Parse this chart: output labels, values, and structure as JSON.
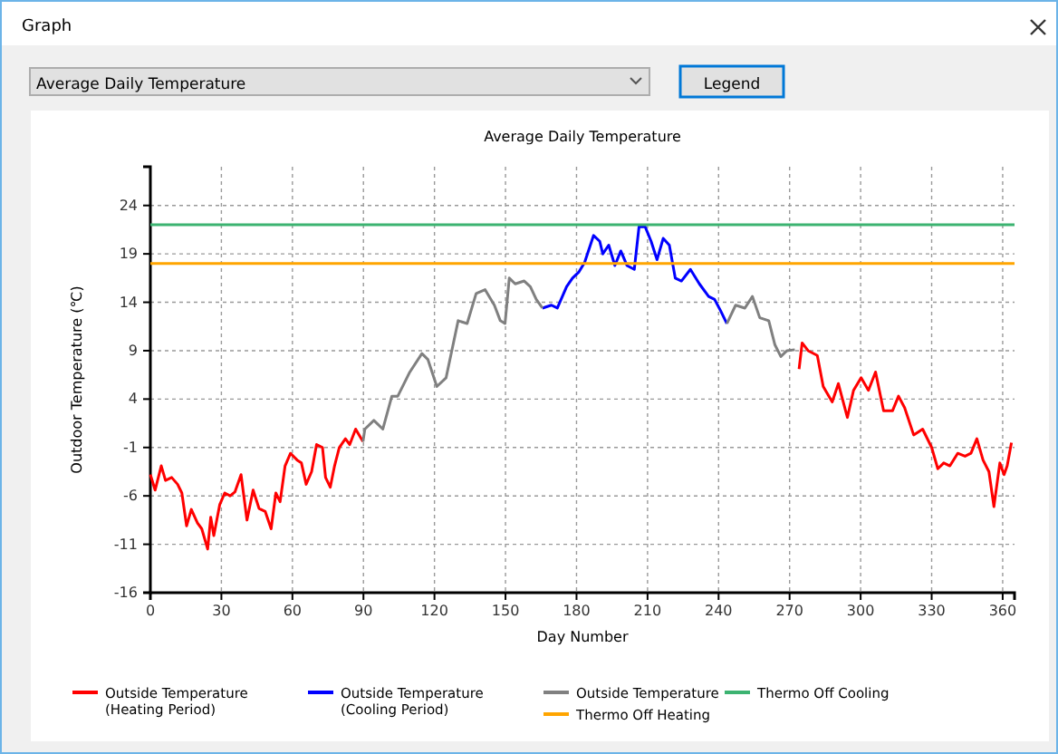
{
  "chart_data": {
    "type": "line",
    "title": "Average Daily Temperature",
    "xlabel": "Day Number",
    "ylabel": "Outdoor Temperature (℃)",
    "annotations": [
      "Graph",
      "Average Daily Temperature",
      "Legend"
    ],
    "xlim": [
      0,
      365
    ],
    "xticks": [
      0,
      30,
      60,
      90,
      120,
      150,
      180,
      210,
      240,
      270,
      300,
      330,
      360
    ],
    "ylim": [
      -16,
      28
    ],
    "yticks": [
      -16,
      -11,
      -6,
      -1,
      4,
      9,
      14,
      19,
      24
    ],
    "grid": true,
    "legend": "bottom",
    "marker": "none",
    "line_style": "solid",
    "series": [
      {
        "name": "Outside Temperature (Heating Period)",
        "color": "#ff0000",
        "x": [
          0,
          2,
          4.6,
          6.4,
          9,
          11.5,
          13.3,
          15.3,
          17.3,
          19.9,
          21.7,
          24.2,
          25.5,
          26.8,
          29.3,
          31.4,
          33.7,
          35.7,
          38.3,
          40.8,
          43.4,
          45.9,
          48.5,
          51,
          53,
          54.8,
          56.9,
          59.2,
          62,
          63.8,
          65.8,
          68.1,
          70.2,
          72.7,
          74,
          76,
          77.8,
          79.8,
          82.4,
          84.2,
          86.7,
          89.8
        ],
        "values": [
          -3.8,
          -5.4,
          -2.9,
          -4.4,
          -4.1,
          -4.8,
          -5.7,
          -9.1,
          -7.4,
          -8.8,
          -9.4,
          -11.5,
          -8.2,
          -10.1,
          -6.9,
          -5.7,
          -6,
          -5.6,
          -3.8,
          -8.5,
          -5.4,
          -7.3,
          -7.6,
          -9.4,
          -5.7,
          -6.6,
          -2.9,
          -1.6,
          -2.3,
          -2.6,
          -4.8,
          -3.5,
          -0.7,
          -1,
          -4.1,
          -5.1,
          -2.9,
          -1,
          -0.1,
          -0.7,
          0.9,
          -0.4
        ]
      },
      {
        "name": "Outside Temperature (Cooling Period)",
        "color": "#0000ff",
        "x": [
          165.6,
          169.4,
          171.9,
          175.8,
          178.3,
          180.9,
          183.4,
          187.2,
          189.8,
          191.1,
          193.6,
          196.2,
          198.7,
          201.3,
          204.4,
          206.4,
          209,
          211.5,
          214,
          216.6,
          219.2,
          221.7,
          224.3,
          228.1,
          231.9,
          235.8,
          238.3,
          240.9,
          243.5
        ],
        "values": [
          13.4,
          13.7,
          13.4,
          15.6,
          16.5,
          17.1,
          18.1,
          20.9,
          20.3,
          19,
          19.9,
          17.8,
          19.3,
          17.8,
          17.4,
          21.8,
          21.8,
          20.3,
          18.4,
          20.6,
          19.9,
          16.5,
          16.2,
          17.4,
          15.9,
          14.6,
          14.3,
          13.1,
          11.8
        ]
      },
      {
        "name": "Outside Temperature",
        "color": "#808080",
        "x": [
          89.8,
          90.6,
          94.4,
          98.2,
          102,
          104.5,
          109.6,
          114.7,
          117.2,
          121,
          124.9,
          130,
          133.8,
          137.6,
          141.4,
          145.3,
          147.8,
          149.8,
          151.6,
          154.1,
          157.9,
          160.5,
          163,
          165.6,
          null,
          243.5,
          247.2,
          251.1,
          254.3,
          257.4,
          261.2,
          263.8,
          266.3,
          268.9,
          272.2
        ],
        "values": [
          -0.4,
          0.9,
          1.8,
          0.9,
          4.3,
          4.3,
          6.8,
          8.7,
          8.1,
          5.3,
          6.2,
          12.1,
          11.8,
          14.9,
          15.3,
          13.7,
          12.1,
          11.8,
          16.5,
          15.9,
          16.2,
          15.6,
          14.3,
          13.4,
          null,
          11.8,
          13.7,
          13.4,
          14.6,
          12.4,
          12.1,
          9.6,
          8.4,
          9,
          9.1
        ]
      },
      {
        "name": "Thermo Off Heating",
        "color": "#ffa500",
        "x": [
          0,
          365
        ],
        "values": [
          18,
          18
        ]
      },
      {
        "name": "Thermo Off Cooling",
        "color": "#3cb371",
        "x": [
          0,
          365
        ],
        "values": [
          22,
          22
        ]
      },
      {
        "name": null,
        "color": "#ff0000",
        "x": [
          274,
          275.3,
          277.8,
          281.7,
          284.2,
          288,
          290.6,
          294.4,
          297,
          300.2,
          303.3,
          306.3,
          309.7,
          313.5,
          316,
          318.6,
          322.4,
          326.2,
          330,
          332.6,
          335.1,
          337.7,
          341,
          344.1,
          346.6,
          349.1,
          351.7,
          354.2,
          356.3,
          358.8,
          360.6,
          361.9,
          363.7
        ],
        "values": [
          7.1,
          9.8,
          9,
          8.5,
          5.3,
          3.7,
          5.6,
          2.1,
          4.9,
          6.2,
          4.9,
          6.8,
          2.8,
          2.8,
          4.3,
          3.1,
          0.3,
          0.9,
          -1,
          -3.2,
          -2.6,
          -2.9,
          -1.6,
          -1.9,
          -1.6,
          -0.1,
          -2.3,
          -3.5,
          -7.1,
          -2.6,
          -3.8,
          -2.9,
          -0.5
        ]
      }
    ]
  }
}
